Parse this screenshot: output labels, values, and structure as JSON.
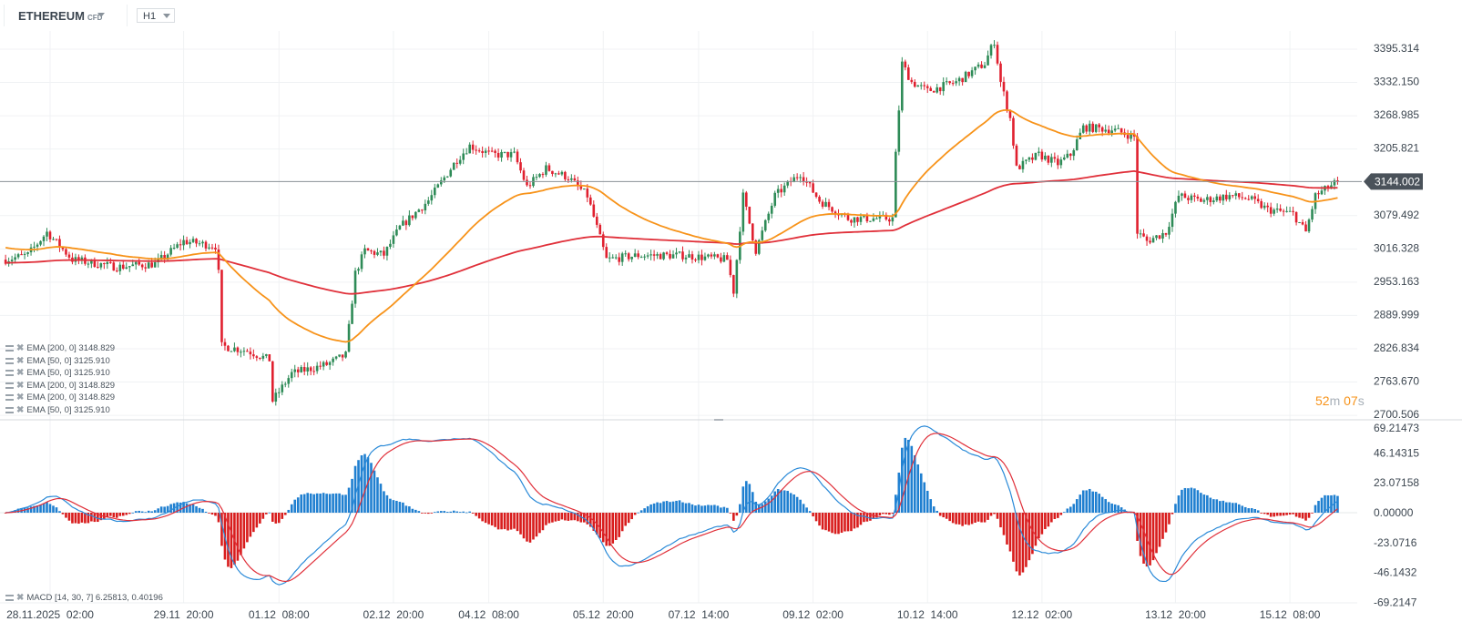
{
  "header": {
    "symbol": "ETHEREUM",
    "symbol_type": "CFD",
    "timeframe": "H1"
  },
  "price_axis": {
    "ticks": [
      "3395.314",
      "3332.150",
      "3268.985",
      "3205.821",
      "3079.492",
      "3016.328",
      "2953.163",
      "2889.999",
      "2826.834",
      "2763.670",
      "2700.506"
    ],
    "tick_values": [
      3395.314,
      3332.15,
      3268.985,
      3205.821,
      3079.492,
      3016.328,
      2953.163,
      2889.999,
      2826.834,
      2763.67,
      2700.506
    ]
  },
  "current_price": {
    "label": "3144.002",
    "value": 3144.002
  },
  "macd_axis": {
    "ticks": [
      "69.21473",
      "46.14315",
      "23.07158",
      "0.00000",
      "-23.0716",
      "-46.1432",
      "-69.2147"
    ],
    "tick_values": [
      69.21473,
      46.14315,
      23.07158,
      0,
      -23.0716,
      -46.1432,
      -69.2147
    ]
  },
  "time_axis": [
    "28.11.2025  02:00",
    "29.11  20:00",
    "01.12  08:00",
    "02.12  20:00",
    "04.12  08:00",
    "05.12  20:00",
    "07.12  14:00",
    "09.12  02:00",
    "10.12  14:00",
    "12.12  02:00",
    "13.12  20:00",
    "15.12  08:00"
  ],
  "time_axis_hours": [
    0,
    42,
    72,
    108,
    138,
    174,
    204,
    240,
    276,
    312,
    354,
    390
  ],
  "legend": [
    {
      "text": "EMA [200,  0] 3148.829"
    },
    {
      "text": "EMA [50,  0] 3125.910"
    },
    {
      "text": "EMA [50,  0] 3125.910"
    },
    {
      "text": "EMA [200,  0] 3148.829"
    },
    {
      "text": "EMA [200,  0] 3148.829"
    },
    {
      "text": "EMA [50,  0] 3125.910"
    }
  ],
  "macd_legend": {
    "text": "MACD [14, 30, 7] 6.25813,  0.40196"
  },
  "timer": {
    "minutes": "52",
    "m": "m",
    "seconds": "07",
    "s": "s"
  },
  "colors": {
    "up": "#2e8b57",
    "down": "#e0202f",
    "ema50": "#f7931a",
    "ema200": "#e0303a",
    "macd": "#2a8ad8",
    "signal": "#e0303a",
    "hist_pos": "#1f7fd0",
    "hist_neg": "#d81c1c"
  },
  "chart_data": {
    "type": "candlestick",
    "title": "ETHEREUM CFD H1",
    "price_keypoints_hour_price": [
      [
        -14,
        2996
      ],
      [
        -7,
        3005
      ],
      [
        -1,
        3048
      ],
      [
        7,
        2996
      ],
      [
        21,
        2982
      ],
      [
        33,
        2988
      ],
      [
        42,
        3031
      ],
      [
        52,
        3022
      ],
      [
        53,
        2970
      ],
      [
        54,
        2832
      ],
      [
        62,
        2823
      ],
      [
        69,
        2806
      ],
      [
        70,
        2728
      ],
      [
        76,
        2780
      ],
      [
        87,
        2797
      ],
      [
        93,
        2815
      ],
      [
        96,
        2970
      ],
      [
        99,
        3013
      ],
      [
        105,
        3005
      ],
      [
        110,
        3057
      ],
      [
        119,
        3108
      ],
      [
        128,
        3186
      ],
      [
        132,
        3212
      ],
      [
        139,
        3195
      ],
      [
        146,
        3195
      ],
      [
        150,
        3134
      ],
      [
        156,
        3169
      ],
      [
        163,
        3152
      ],
      [
        169,
        3117
      ],
      [
        172,
        3057
      ],
      [
        175,
        2996
      ],
      [
        185,
        3004
      ],
      [
        199,
        3004
      ],
      [
        213,
        2996
      ],
      [
        215,
        2936
      ],
      [
        218,
        3117
      ],
      [
        222,
        3013
      ],
      [
        228,
        3117
      ],
      [
        236,
        3160
      ],
      [
        242,
        3108
      ],
      [
        251,
        3074
      ],
      [
        265,
        3074
      ],
      [
        266,
        3195
      ],
      [
        268,
        3368
      ],
      [
        271,
        3333
      ],
      [
        276,
        3316
      ],
      [
        285,
        3333
      ],
      [
        294,
        3368
      ],
      [
        297,
        3411
      ],
      [
        299,
        3333
      ],
      [
        302,
        3264
      ],
      [
        304,
        3169
      ],
      [
        311,
        3195
      ],
      [
        317,
        3178
      ],
      [
        321,
        3195
      ],
      [
        325,
        3247
      ],
      [
        334,
        3243
      ],
      [
        341,
        3229
      ],
      [
        342,
        3048
      ],
      [
        345,
        3031
      ],
      [
        351,
        3048
      ],
      [
        355,
        3117
      ],
      [
        362,
        3108
      ],
      [
        371,
        3117
      ],
      [
        377,
        3112
      ],
      [
        383,
        3091
      ],
      [
        391,
        3083
      ],
      [
        395,
        3048
      ],
      [
        398,
        3117
      ],
      [
        405,
        3144
      ]
    ],
    "indicators": [
      "EMA 50",
      "EMA 200",
      "MACD 14,30,7"
    ],
    "price_range": [
      2700.506,
      3395.314
    ],
    "macd_range": [
      -69.2147,
      69.21473
    ]
  }
}
